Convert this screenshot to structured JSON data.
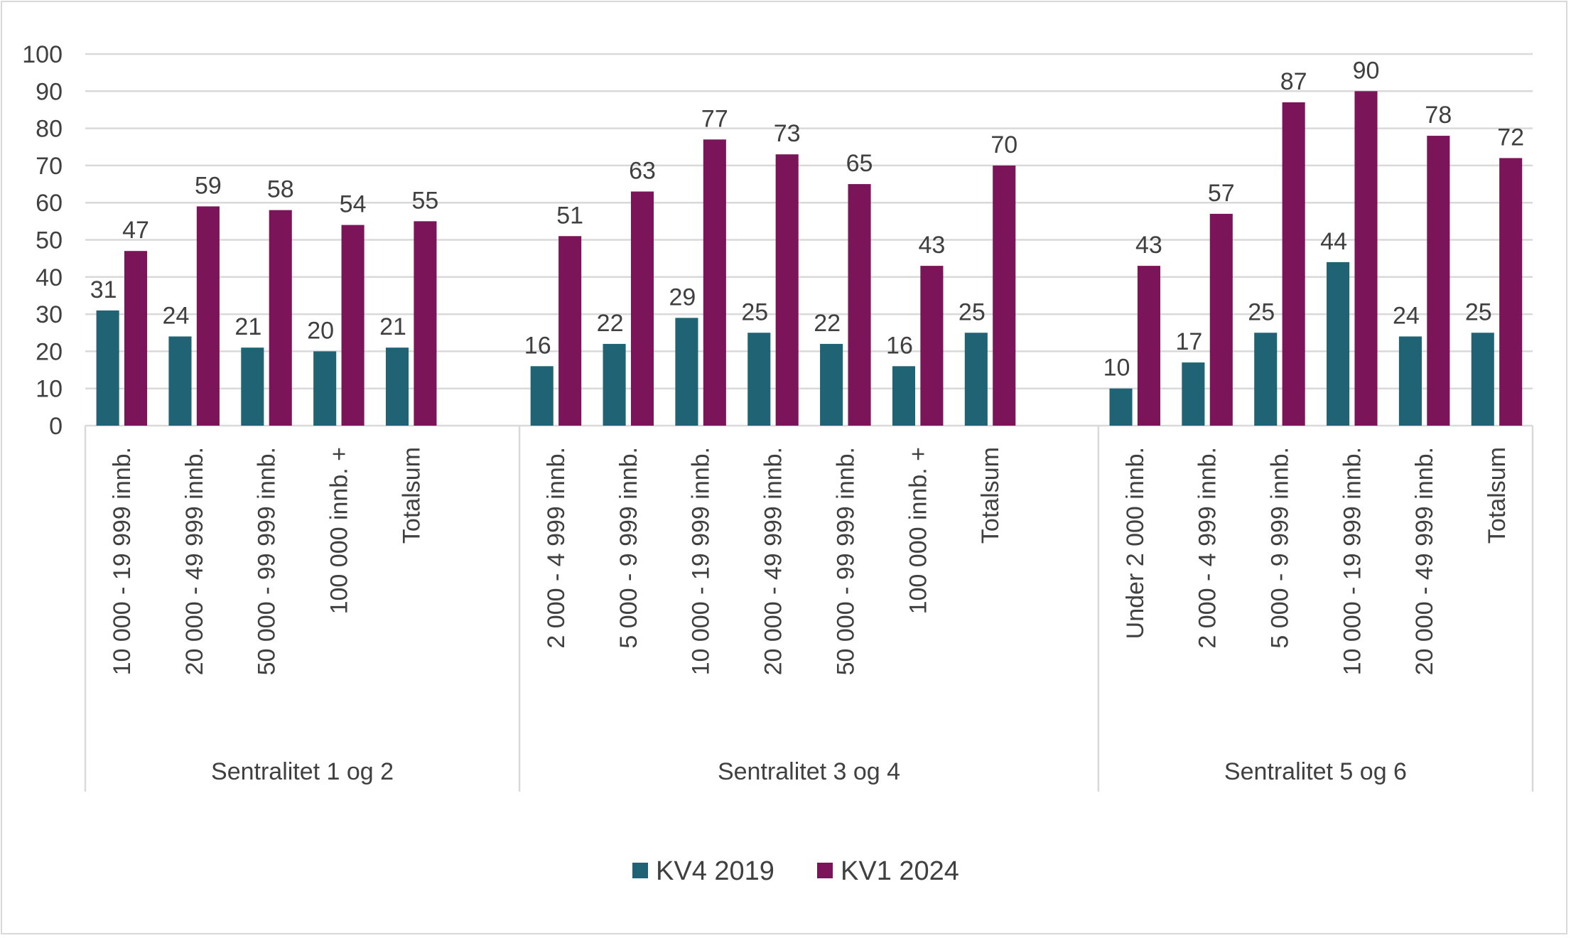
{
  "chart_data": {
    "type": "bar",
    "ylim": [
      0,
      100
    ],
    "yticks": [
      0,
      10,
      20,
      30,
      40,
      50,
      60,
      70,
      80,
      90,
      100
    ],
    "grid": true,
    "legend_position": "bottom",
    "groups": [
      {
        "label": "Sentralitet 1 og 2",
        "categories": [
          "10 000 - 19 999 innb.",
          "20 000 - 49 999 innb.",
          "50 000 - 99 999 innb.",
          "100 000 innb. +",
          "Totalsum"
        ]
      },
      {
        "label": "Sentralitet 3 og 4",
        "categories": [
          "2 000 - 4 999 innb.",
          "5 000 - 9 999 innb.",
          "10 000 - 19 999 innb.",
          "20 000 - 49 999 innb.",
          "50 000 - 99 999 innb.",
          "100 000 innb. +",
          "Totalsum"
        ]
      },
      {
        "label": "Sentralitet 5 og 6",
        "categories": [
          "Under 2 000 innb.",
          "2 000 - 4 999 innb.",
          "5 000 - 9 999 innb.",
          "10 000 - 19 999 innb.",
          "20 000 - 49 999 innb.",
          "Totalsum"
        ]
      }
    ],
    "series": [
      {
        "name": "KV4 2019",
        "color": "#1f6375",
        "values": [
          [
            31,
            24,
            21,
            20,
            21
          ],
          [
            16,
            22,
            29,
            25,
            22,
            16,
            25
          ],
          [
            10,
            17,
            25,
            44,
            24,
            25
          ]
        ]
      },
      {
        "name": "KV1 2024",
        "color": "#7b1459",
        "values": [
          [
            47,
            59,
            58,
            54,
            55
          ],
          [
            51,
            63,
            77,
            73,
            65,
            43,
            70
          ],
          [
            43,
            57,
            87,
            90,
            78,
            72
          ]
        ]
      }
    ]
  }
}
